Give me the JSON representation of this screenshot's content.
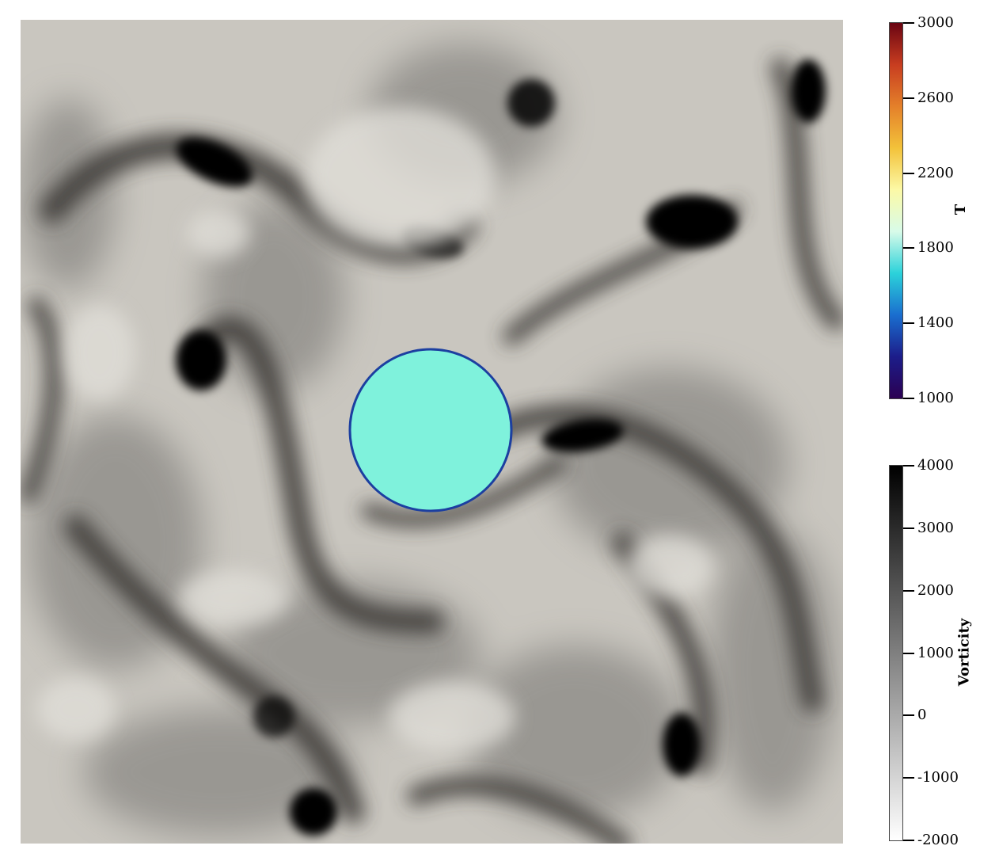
{
  "temperature_colorbar": {
    "title": "T",
    "ticks": [
      "3000",
      "2600",
      "2200",
      "1800",
      "1400",
      "1000"
    ],
    "colors": [
      "#2b0052",
      "#1c1d8a",
      "#1a6ecf",
      "#2bd2da",
      "#d8fbe9",
      "#fcf9a6",
      "#f3c23a",
      "#e4802a",
      "#c83d20",
      "#6a0412"
    ]
  },
  "vorticity_colorbar": {
    "title": "Vorticity",
    "ticks": [
      "4000",
      "3000",
      "2000",
      "1000",
      "0",
      "-1000",
      "-2000"
    ],
    "colors": [
      "#000000",
      "#ffffff"
    ]
  },
  "particle": {
    "fill": "#7ff2dc",
    "edge": "#1c3fa0"
  },
  "field": {
    "background": "#c9c6bf"
  }
}
